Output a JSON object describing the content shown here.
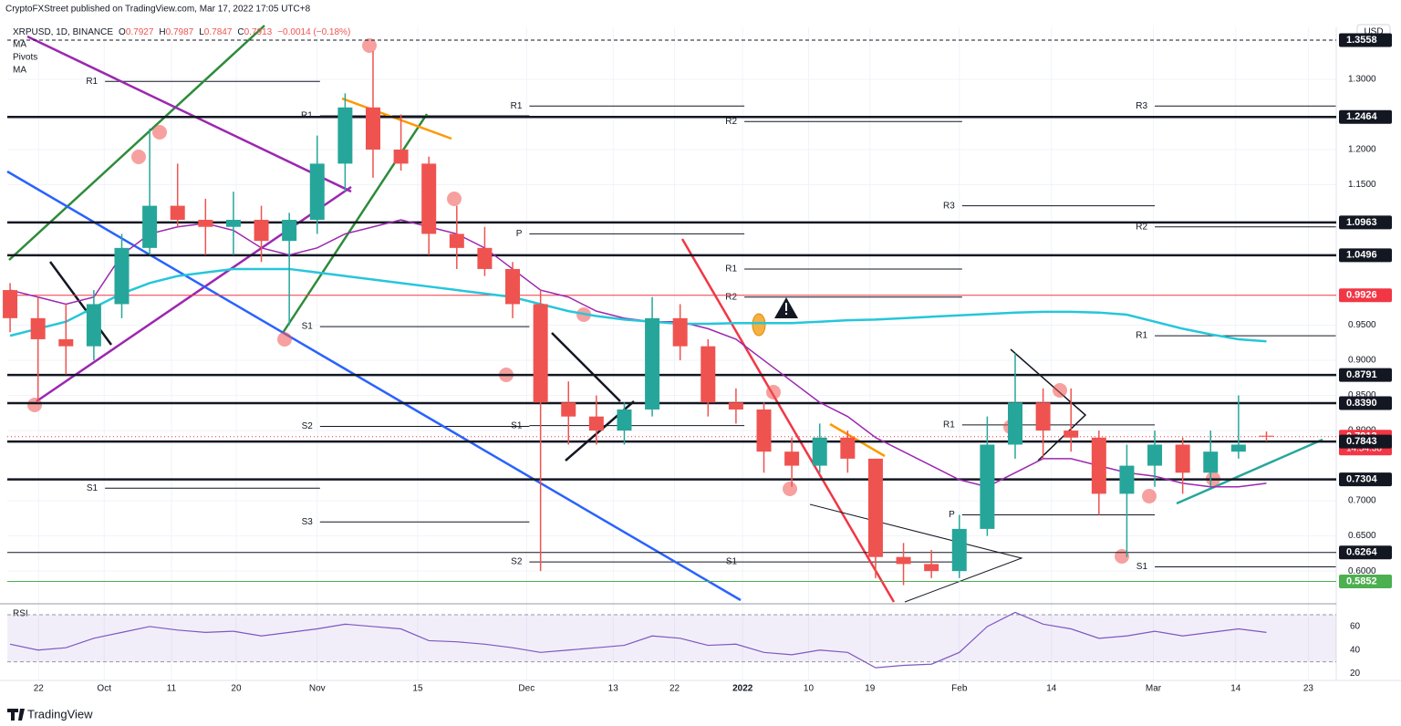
{
  "chart_data": {
    "type": "candlestick",
    "publisher": "CryptoFXStreet published on TradingView.com, Mar 17, 2022 17:05 UTC+8",
    "title": "XRPUSD, 1D, BINANCE",
    "ohlc_labels": [
      "O",
      "H",
      "L",
      "C"
    ],
    "change": "−0.0014 (−0.18%)",
    "indicators": [
      "MA",
      "Pivots",
      "MA"
    ],
    "currency": "USD",
    "footer": "TradingView",
    "up_color": "#26a69a",
    "down_color": "#ef5350",
    "open": [
      1.0,
      0.96,
      0.93,
      0.92,
      0.98,
      1.06,
      1.12,
      1.1,
      1.09,
      1.1,
      1.07,
      1.1,
      1.18,
      1.26,
      1.2,
      1.18,
      1.08,
      1.06,
      1.03,
      0.98,
      0.84,
      0.82,
      0.8,
      0.83,
      0.96,
      0.92,
      0.84,
      0.83,
      0.77,
      0.75,
      0.79,
      0.76,
      0.62,
      0.61,
      0.6,
      0.66,
      0.78,
      0.84,
      0.8,
      0.79,
      0.71,
      0.75,
      0.78,
      0.74,
      0.77,
      0.7927
    ],
    "high": [
      1.01,
      0.99,
      0.98,
      1.0,
      1.08,
      1.23,
      1.18,
      1.13,
      1.14,
      1.12,
      1.11,
      1.22,
      1.28,
      1.34,
      1.25,
      1.19,
      1.12,
      1.09,
      1.04,
      1.0,
      0.87,
      0.85,
      0.84,
      0.99,
      0.98,
      0.93,
      0.86,
      0.84,
      0.79,
      0.81,
      0.8,
      0.76,
      0.64,
      0.63,
      0.68,
      0.82,
      0.91,
      0.86,
      0.86,
      0.8,
      0.78,
      0.8,
      0.79,
      0.8,
      0.85,
      0.7987
    ],
    "low": [
      0.94,
      0.84,
      0.88,
      0.9,
      0.96,
      1.05,
      1.09,
      1.05,
      1.05,
      1.04,
      0.95,
      1.08,
      1.14,
      1.16,
      1.17,
      1.05,
      1.03,
      1.02,
      0.96,
      0.6,
      0.78,
      0.78,
      0.78,
      0.82,
      0.9,
      0.82,
      0.81,
      0.74,
      0.72,
      0.74,
      0.74,
      0.59,
      0.58,
      0.59,
      0.59,
      0.65,
      0.76,
      0.76,
      0.77,
      0.68,
      0.62,
      0.72,
      0.71,
      0.72,
      0.76,
      0.7847
    ],
    "close": [
      0.96,
      0.93,
      0.92,
      0.98,
      1.06,
      1.12,
      1.1,
      1.09,
      1.1,
      1.07,
      1.1,
      1.18,
      1.26,
      1.2,
      1.18,
      1.08,
      1.06,
      1.03,
      0.98,
      0.84,
      0.82,
      0.8,
      0.83,
      0.96,
      0.92,
      0.84,
      0.83,
      0.77,
      0.75,
      0.79,
      0.76,
      0.62,
      0.61,
      0.6,
      0.66,
      0.78,
      0.84,
      0.8,
      0.79,
      0.71,
      0.75,
      0.78,
      0.74,
      0.77,
      0.78,
      0.7913
    ],
    "ma": [
      {
        "color": "#9c27b0",
        "values": [
          1.0,
          0.99,
          0.98,
          0.99,
          1.05,
          1.08,
          1.09,
          1.095,
          1.085,
          1.06,
          1.05,
          1.06,
          1.08,
          1.09,
          1.1,
          1.09,
          1.08,
          1.06,
          1.03,
          1.0,
          0.99,
          0.97,
          0.96,
          0.955,
          0.955,
          0.945,
          0.93,
          0.9,
          0.87,
          0.84,
          0.82,
          0.79,
          0.77,
          0.75,
          0.73,
          0.72,
          0.74,
          0.76,
          0.76,
          0.75,
          0.74,
          0.735,
          0.725,
          0.72,
          0.72,
          0.725
        ]
      },
      {
        "color": "#26c6da",
        "values": [
          0.935,
          0.945,
          0.955,
          0.975,
          0.995,
          1.01,
          1.02,
          1.025,
          1.03,
          1.03,
          1.03,
          1.025,
          1.02,
          1.015,
          1.01,
          1.005,
          1.0,
          0.995,
          0.99,
          0.98,
          0.97,
          0.963,
          0.958,
          0.955,
          0.952,
          0.952,
          0.953,
          0.953,
          0.953,
          0.955,
          0.957,
          0.958,
          0.96,
          0.962,
          0.964,
          0.966,
          0.968,
          0.969,
          0.969,
          0.968,
          0.965,
          0.955,
          0.945,
          0.937,
          0.93,
          0.927
        ]
      }
    ],
    "xlim": [
      -0.1,
      47.5
    ],
    "xticks": [
      {
        "value": 1.02,
        "label": "22"
      },
      {
        "value": 3.37,
        "label": "Oct"
      },
      {
        "value": 5.78,
        "label": "11"
      },
      {
        "value": 8.1,
        "label": "20"
      },
      {
        "value": 11.0,
        "label": "Nov"
      },
      {
        "value": 14.6,
        "label": "15"
      },
      {
        "value": 18.5,
        "label": "Dec"
      },
      {
        "value": 21.6,
        "label": "13"
      },
      {
        "value": 23.8,
        "label": "22"
      },
      {
        "value": 26.24,
        "label": "2022"
      },
      {
        "value": 28.6,
        "label": "10"
      },
      {
        "value": 30.8,
        "label": "19"
      },
      {
        "value": 34.0,
        "label": "Feb"
      },
      {
        "value": 37.3,
        "label": "14"
      },
      {
        "value": 40.95,
        "label": "Mar"
      },
      {
        "value": 43.9,
        "label": "14"
      },
      {
        "value": 46.5,
        "label": "23"
      }
    ],
    "ylim": [
      0.556,
      1.374
    ],
    "yticks": [
      {
        "value": 1.3,
        "label": "1.3000"
      },
      {
        "value": 1.2,
        "label": "1.2000"
      },
      {
        "value": 1.15,
        "label": "1.1500"
      },
      {
        "value": 0.95,
        "label": "0.9500"
      },
      {
        "value": 0.9,
        "label": "0.9000"
      },
      {
        "value": 0.85,
        "label": "0.8500"
      },
      {
        "value": 0.8,
        "label": "0.8000"
      },
      {
        "value": 0.7,
        "label": "0.7000"
      },
      {
        "value": 0.65,
        "label": "0.6500"
      },
      {
        "value": 0.6,
        "label": "0.6000"
      }
    ],
    "levels": [
      {
        "value": 1.3558,
        "color": "#131722",
        "style": "dashed"
      },
      {
        "value": 1.2464,
        "color": "#131722",
        "style": "thick"
      },
      {
        "value": 1.0963,
        "color": "#131722",
        "style": "thick"
      },
      {
        "value": 1.0496,
        "color": "#131722",
        "style": "thick"
      },
      {
        "value": 0.9926,
        "color": "#f23645",
        "style": "thin"
      },
      {
        "value": 0.8791,
        "color": "#131722",
        "style": "thick"
      },
      {
        "value": {
          "value": 0.839,
          "label": "0.8390"
        },
        "color": "#131722",
        "style": "thick"
      },
      {
        "value": 0.7913,
        "color": "#f23645",
        "style": "dotted",
        "countdown": "14:54:38"
      },
      {
        "value": 0.7843,
        "color": "#131722",
        "style": "thick"
      },
      {
        "value": 0.7304,
        "color": "#131722",
        "style": "thick"
      },
      {
        "value": 0.6264,
        "color": "#131722",
        "style": "thin"
      },
      {
        "value": 0.5852,
        "color": "#4caf50",
        "style": "thin"
      }
    ],
    "pivots": [
      {
        "label": "R1",
        "value": 1.297,
        "x1": 3.4,
        "x2": 11.1
      },
      {
        "label": "S1",
        "value": 0.718,
        "x1": 3.4,
        "x2": 11.1
      },
      {
        "label": "R1",
        "value": 1.248,
        "x1": 11.1,
        "x2": 18.6
      },
      {
        "label": "S1",
        "value": 0.948,
        "x1": 11.1,
        "x2": 18.6
      },
      {
        "label": "S2",
        "value": 0.806,
        "x1": 11.1,
        "x2": 18.6
      },
      {
        "label": "S3",
        "value": 0.67,
        "x1": 11.1,
        "x2": 18.6
      },
      {
        "label": "R1",
        "value": 1.262,
        "x1": 18.6,
        "x2": 26.3
      },
      {
        "label": "P",
        "value": 1.08,
        "x1": 18.6,
        "x2": 26.3
      },
      {
        "label": "S1",
        "value": 0.807,
        "x1": 18.6,
        "x2": 26.3
      },
      {
        "label": "S2",
        "value": 0.613,
        "x1": 18.6,
        "x2": 26.3
      },
      {
        "label": "R2",
        "value": 1.24,
        "x1": 26.3,
        "x2": 34.1
      },
      {
        "label": "R1",
        "value": 1.03,
        "x1": 26.3,
        "x2": 34.1
      },
      {
        "label": "R2",
        "value": 0.99,
        "x1": 26.3,
        "x2": 34.1
      },
      {
        "label": "S1",
        "value": 0.613,
        "x1": 26.3,
        "x2": 34.1
      },
      {
        "label": "R3",
        "value": 1.12,
        "x1": 34.1,
        "x2": 41.0
      },
      {
        "label": "R1",
        "value": 0.808,
        "x1": 34.1,
        "x2": 41.0
      },
      {
        "label": "P",
        "value": 0.68,
        "x1": 34.1,
        "x2": 41.0
      },
      {
        "label": "R3",
        "value": 1.262,
        "x1": 41.0,
        "x2": 47.5
      },
      {
        "label": "R2",
        "value": 1.09,
        "x1": 41.0,
        "x2": 47.5
      },
      {
        "label": "R1",
        "value": 0.935,
        "x1": 41.0,
        "x2": 47.5
      },
      {
        "label": "S1",
        "value": 0.606,
        "x1": 41.0,
        "x2": 47.5
      }
    ],
    "rsi": {
      "name": "RSI",
      "color": "#7e57c2",
      "values": [
        45,
        40,
        42,
        50,
        55,
        60,
        57,
        55,
        56,
        52,
        55,
        58,
        62,
        60,
        58,
        48,
        47,
        45,
        42,
        38,
        40,
        42,
        44,
        52,
        50,
        44,
        45,
        38,
        36,
        40,
        38,
        25,
        27,
        28,
        38,
        60,
        72,
        62,
        58,
        50,
        52,
        56,
        52,
        55,
        58,
        55
      ],
      "ylim": [
        15,
        77
      ],
      "yticks": [
        60,
        40,
        20
      ],
      "bands": [
        30,
        70
      ]
    }
  }
}
